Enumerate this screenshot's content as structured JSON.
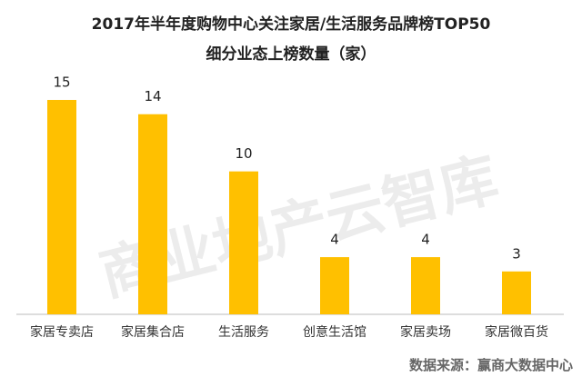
{
  "chart_data": {
    "type": "bar",
    "title": "2017年半年度购物中心关注家居/生活服务品牌榜TOP50",
    "subtitle": "细分业态上榜数量（家）",
    "categories": [
      "家居专卖店",
      "家居集合店",
      "生活服务",
      "创意生活馆",
      "家居卖场",
      "家居微百货"
    ],
    "values": [
      15,
      14,
      10,
      4,
      4,
      3
    ],
    "color": "#ffc000",
    "watermark": "商业地产云智库",
    "source": "数据来源：赢商大数据中心"
  }
}
